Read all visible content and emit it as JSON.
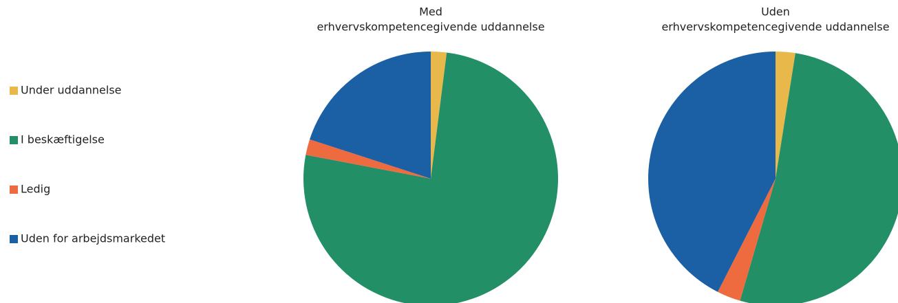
{
  "chart_data": [
    {
      "type": "pie",
      "title": [
        "Med",
        "erhvervskompetencegivende uddannelse"
      ],
      "categories": [
        "Under uddannelse",
        "I beskæftigelse",
        "Ledig",
        "Uden for arbejdsmarkedet"
      ],
      "values": [
        2,
        76,
        2,
        20
      ],
      "colors": [
        "#e8b84a",
        "#238f66",
        "#ee6a3f",
        "#1b5fa4"
      ]
    },
    {
      "type": "pie",
      "title": [
        "Uden",
        "erhvervskompetencegivende uddannelse"
      ],
      "categories": [
        "Under uddannelse",
        "I beskæftigelse",
        "Ledig",
        "Uden for arbejdsmarkedet"
      ],
      "values": [
        2.5,
        52,
        3,
        42.5
      ],
      "colors": [
        "#e8b84a",
        "#238f66",
        "#ee6a3f",
        "#1b5fa4"
      ]
    }
  ]
}
